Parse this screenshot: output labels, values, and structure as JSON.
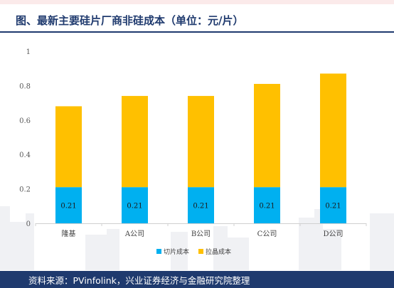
{
  "title": "图、最新主要硅片厂商非硅成本（单位：元/片）",
  "source": "资料来源：PVinfolink，兴业证券经济与金融研究院整理",
  "colors": {
    "slicing": "#00b0f0",
    "crystal": "#ffc000",
    "brand": "#1f3a6e"
  },
  "chart_data": {
    "type": "bar",
    "stacked": true,
    "categories": [
      "隆基",
      "A公司",
      "B公司",
      "C公司",
      "D公司"
    ],
    "series": [
      {
        "name": "切片成本",
        "values": [
          0.21,
          0.21,
          0.21,
          0.21,
          0.21
        ],
        "color": "#00b0f0"
      },
      {
        "name": "拉晶成本",
        "values": [
          0.47,
          0.53,
          0.53,
          0.6,
          0.66
        ],
        "color": "#ffc000"
      }
    ],
    "data_labels": [
      "0.21",
      "0.21",
      "0.21",
      "0.21",
      "0.21"
    ],
    "yticks": [
      "0",
      "0.2",
      "0.4",
      "0.6",
      "0.8",
      "1"
    ],
    "ylim": [
      0,
      1
    ],
    "xlabel": "",
    "ylabel": "",
    "grid": false,
    "legend": "bottom"
  }
}
